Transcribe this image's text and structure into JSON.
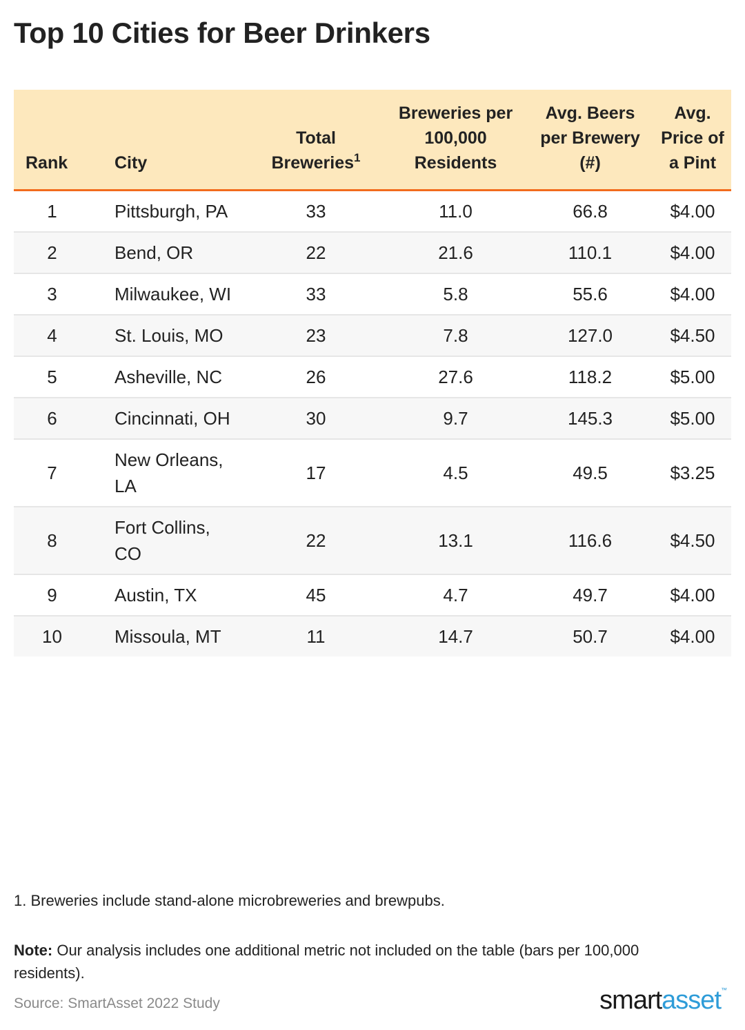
{
  "title": "Top 10 Cities for Beer Drinkers",
  "headers": {
    "rank": "Rank",
    "city": "City",
    "total_breweries": "Total Breweries",
    "total_breweries_sup": "1",
    "breweries_per_100k": "Breweries per 100,000 Residents",
    "avg_beers": "Avg. Beers per Brewery (#)",
    "avg_price": "Avg. Price of a Pint"
  },
  "rows": [
    {
      "rank": "1",
      "city": "Pittsburgh, PA",
      "total": "33",
      "per100k": "11.0",
      "beers": "66.8",
      "price": "$4.00"
    },
    {
      "rank": "2",
      "city": "Bend, OR",
      "total": "22",
      "per100k": "21.6",
      "beers": "110.1",
      "price": "$4.00"
    },
    {
      "rank": "3",
      "city": "Milwaukee, WI",
      "total": "33",
      "per100k": "5.8",
      "beers": "55.6",
      "price": "$4.00"
    },
    {
      "rank": "4",
      "city": "St. Louis, MO",
      "total": "23",
      "per100k": "7.8",
      "beers": "127.0",
      "price": "$4.50"
    },
    {
      "rank": "5",
      "city": "Asheville, NC",
      "total": "26",
      "per100k": "27.6",
      "beers": "118.2",
      "price": "$5.00"
    },
    {
      "rank": "6",
      "city": "Cincinnati, OH",
      "total": "30",
      "per100k": "9.7",
      "beers": "145.3",
      "price": "$5.00"
    },
    {
      "rank": "7",
      "city": "New Orleans, LA",
      "total": "17",
      "per100k": "4.5",
      "beers": "49.5",
      "price": "$3.25"
    },
    {
      "rank": "8",
      "city": "Fort Collins, CO",
      "total": "22",
      "per100k": "13.1",
      "beers": "116.6",
      "price": "$4.50"
    },
    {
      "rank": "9",
      "city": "Austin, TX",
      "total": "45",
      "per100k": "4.7",
      "beers": "49.7",
      "price": "$4.00"
    },
    {
      "rank": "10",
      "city": "Missoula, MT",
      "total": "11",
      "per100k": "14.7",
      "beers": "50.7",
      "price": "$4.00"
    }
  ],
  "footnote": "1. Breweries include stand-alone microbreweries and brewpubs.",
  "note_label": "Note:",
  "note_text": " Our analysis includes one additional metric not included on the table (bars per 100,000 residents).",
  "source": "Source: SmartAsset 2022 Study",
  "logo": {
    "smart": "smart",
    "asset": "asset",
    "tm": "™"
  },
  "colors": {
    "header_bg": "#fde8bd",
    "header_rule": "#f26b1d",
    "stripe": "#f7f7f7",
    "logo_accent": "#2e9cd8"
  },
  "chart_data": {
    "type": "table",
    "title": "Top 10 Cities for Beer Drinkers",
    "columns": [
      "Rank",
      "City",
      "Total Breweries",
      "Breweries per 100,000 Residents",
      "Avg. Beers per Brewery (#)",
      "Avg. Price of a Pint"
    ],
    "rows": [
      [
        1,
        "Pittsburgh, PA",
        33,
        11.0,
        66.8,
        4.0
      ],
      [
        2,
        "Bend, OR",
        22,
        21.6,
        110.1,
        4.0
      ],
      [
        3,
        "Milwaukee, WI",
        33,
        5.8,
        55.6,
        4.0
      ],
      [
        4,
        "St. Louis, MO",
        23,
        7.8,
        127.0,
        4.5
      ],
      [
        5,
        "Asheville, NC",
        26,
        27.6,
        118.2,
        5.0
      ],
      [
        6,
        "Cincinnati, OH",
        30,
        9.7,
        145.3,
        5.0
      ],
      [
        7,
        "New Orleans, LA",
        17,
        4.5,
        49.5,
        3.25
      ],
      [
        8,
        "Fort Collins, CO",
        22,
        13.1,
        116.6,
        4.5
      ],
      [
        9,
        "Austin, TX",
        45,
        4.7,
        49.7,
        4.0
      ],
      [
        10,
        "Missoula, MT",
        11,
        14.7,
        50.7,
        4.0
      ]
    ]
  }
}
